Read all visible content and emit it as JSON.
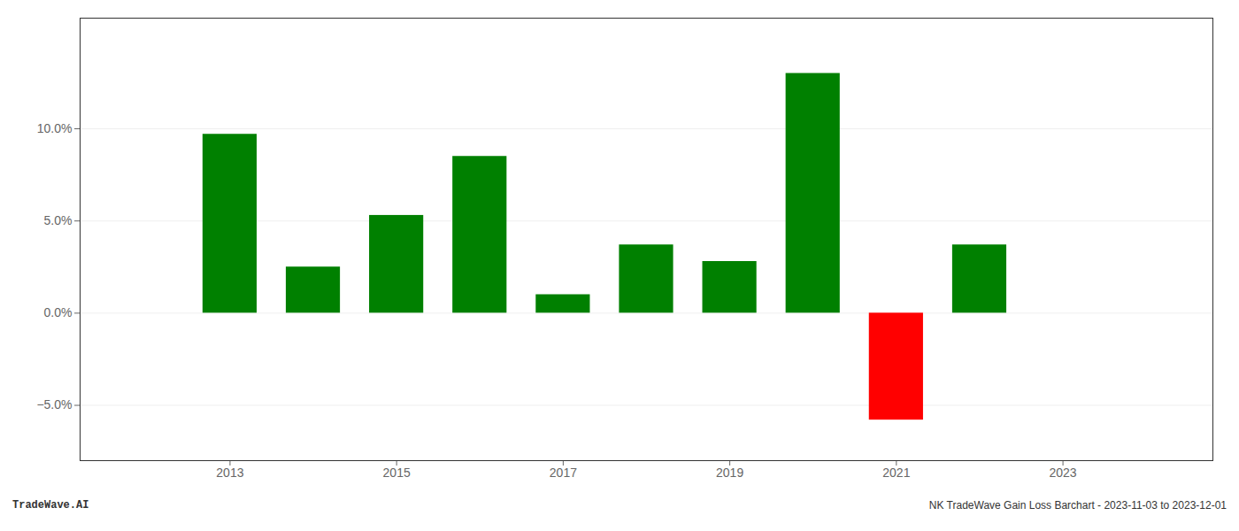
{
  "chart_data": {
    "type": "bar",
    "x": [
      2013,
      2014,
      2015,
      2016,
      2017,
      2018,
      2019,
      2020,
      2021,
      2022
    ],
    "values": [
      0.097,
      0.025,
      0.053,
      0.085,
      0.01,
      0.037,
      0.028,
      0.13,
      -0.058,
      0.037
    ],
    "colors": [
      "#008000",
      "#008000",
      "#008000",
      "#008000",
      "#008000",
      "#008000",
      "#008000",
      "#008000",
      "#ff0000",
      "#008000"
    ],
    "xlim": [
      2011.2,
      2024.8
    ],
    "ylim": [
      -0.08,
      0.16
    ],
    "xticks": [
      2013,
      2015,
      2017,
      2019,
      2021,
      2023
    ],
    "yticks": [
      {
        "value": -0.05,
        "label": "−5.0%"
      },
      {
        "value": 0.0,
        "label": "0.0%"
      },
      {
        "value": 0.05,
        "label": "5.0%"
      },
      {
        "value": 0.1,
        "label": "10.0%"
      }
    ],
    "grid": true,
    "annotations": [
      "TradeWave.AI",
      "NK TradeWave Gain Loss Barchart - 2023-11-03 to 2023-12-01"
    ]
  }
}
